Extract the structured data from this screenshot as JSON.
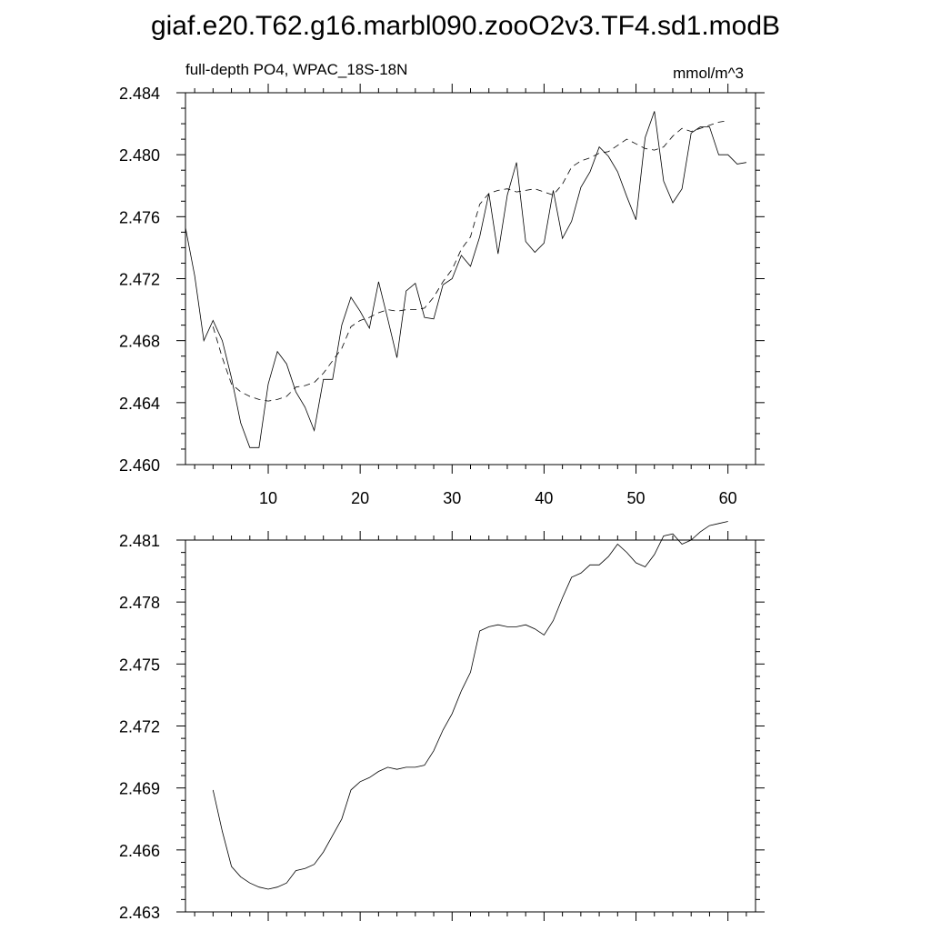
{
  "title": "giaf.e20.T62.g16.marbl090.zooO2v3.TF4.sd1.modB",
  "chart_data": [
    {
      "type": "line",
      "left_label": "full-depth PO4, WPAC_18S-18N",
      "right_label": "mmol/m^3",
      "xlim": [
        1,
        63
      ],
      "ylim": [
        2.46,
        2.484
      ],
      "xticks": [
        10,
        20,
        30,
        40,
        50,
        60
      ],
      "yticks": [
        2.46,
        2.464,
        2.468,
        2.472,
        2.476,
        2.48,
        2.484
      ],
      "ytick_labels": [
        "2.460",
        "2.464",
        "2.468",
        "2.472",
        "2.476",
        "2.480",
        "2.484"
      ],
      "x_minor_step": 2,
      "y_minor_step": 0.001,
      "series": [
        {
          "style": "solid",
          "x": [
            1,
            2,
            3,
            4,
            5,
            6,
            7,
            8,
            9,
            10,
            11,
            12,
            13,
            14,
            15,
            16,
            17,
            18,
            19,
            20,
            21,
            22,
            23,
            24,
            25,
            26,
            27,
            28,
            29,
            30,
            31,
            32,
            33,
            34,
            35,
            36,
            37,
            38,
            39,
            40,
            41,
            42,
            43,
            44,
            45,
            46,
            47,
            48,
            49,
            50,
            51,
            52,
            53,
            54,
            55,
            56,
            57,
            58,
            59,
            60,
            61,
            62
          ],
          "values": [
            2.4753,
            2.4722,
            2.468,
            2.4693,
            2.468,
            2.4656,
            2.4627,
            2.4611,
            2.4611,
            2.4652,
            2.4673,
            2.4665,
            2.4647,
            2.4637,
            2.4622,
            2.4655,
            2.4655,
            2.469,
            2.4708,
            2.4699,
            2.4688,
            2.4718,
            2.4694,
            2.4669,
            2.4712,
            2.4717,
            2.4695,
            2.4694,
            2.4716,
            2.472,
            2.4735,
            2.4728,
            2.4747,
            2.4775,
            2.4736,
            2.4774,
            2.4795,
            2.4744,
            2.4737,
            2.4743,
            2.4777,
            2.4746,
            2.4757,
            2.4779,
            2.4789,
            2.4805,
            2.4799,
            2.4789,
            2.4773,
            2.4758,
            2.4811,
            2.4828,
            2.4783,
            2.4769,
            2.4778,
            2.4814,
            2.4818,
            2.4818,
            2.48,
            2.48,
            2.4794,
            2.4795
          ]
        },
        {
          "style": "dashed",
          "x": [
            4,
            5,
            6,
            7,
            8,
            9,
            10,
            11,
            12,
            13,
            14,
            15,
            16,
            17,
            18,
            19,
            20,
            21,
            22,
            23,
            24,
            25,
            26,
            27,
            28,
            29,
            30,
            31,
            32,
            33,
            34,
            35,
            36,
            37,
            38,
            39,
            40,
            41,
            42,
            43,
            44,
            45,
            46,
            47,
            48,
            49,
            50,
            51,
            52,
            53,
            54,
            55,
            56,
            57,
            58,
            59,
            60
          ],
          "values": [
            2.4689,
            2.4669,
            2.4652,
            2.4647,
            2.4644,
            2.4642,
            2.4641,
            2.4642,
            2.4644,
            2.465,
            2.4651,
            2.4653,
            2.4659,
            2.4667,
            2.4675,
            2.4689,
            2.4693,
            2.4695,
            2.4698,
            2.47,
            2.4699,
            2.47,
            2.47,
            2.4701,
            2.4708,
            2.4718,
            2.4726,
            2.4739,
            2.4747,
            2.4768,
            2.4775,
            2.4777,
            2.4778,
            2.4776,
            2.4777,
            2.4778,
            2.4776,
            2.4774,
            2.4781,
            2.4792,
            2.4796,
            2.4798,
            2.4801,
            2.4802,
            2.4806,
            2.481,
            2.4807,
            2.4804,
            2.4803,
            2.4805,
            2.4812,
            2.4817,
            2.4815,
            2.4817,
            2.4819,
            2.4821,
            2.4822
          ]
        }
      ]
    },
    {
      "type": "line",
      "xlim": [
        1,
        63
      ],
      "ylim": [
        2.463,
        2.481
      ],
      "xticks": [
        10,
        20,
        30,
        40,
        50,
        60
      ],
      "yticks": [
        2.463,
        2.466,
        2.469,
        2.472,
        2.475,
        2.478,
        2.481
      ],
      "ytick_labels": [
        "2.463",
        "2.466",
        "2.469",
        "2.472",
        "2.475",
        "2.478",
        "2.481"
      ],
      "x_minor_step": 2,
      "y_minor_step": 0.0006,
      "series": [
        {
          "style": "solid",
          "x": [
            4,
            5,
            6,
            7,
            8,
            9,
            10,
            11,
            12,
            13,
            14,
            15,
            16,
            17,
            18,
            19,
            20,
            21,
            22,
            23,
            24,
            25,
            26,
            27,
            28,
            29,
            30,
            31,
            32,
            33,
            34,
            35,
            36,
            37,
            38,
            39,
            40,
            41,
            42,
            43,
            44,
            45,
            46,
            47,
            48,
            49,
            50,
            51,
            52,
            53,
            54,
            55,
            56,
            57,
            58,
            59,
            60
          ],
          "values": [
            2.4689,
            2.4669,
            2.4652,
            2.4647,
            2.4644,
            2.4642,
            2.4641,
            2.4642,
            2.4644,
            2.465,
            2.4651,
            2.4653,
            2.4659,
            2.4667,
            2.4675,
            2.4689,
            2.4693,
            2.4695,
            2.4698,
            2.47,
            2.4699,
            2.47,
            2.47,
            2.4701,
            2.4708,
            2.4718,
            2.4726,
            2.4737,
            2.4746,
            2.4766,
            2.4768,
            2.4769,
            2.4768,
            2.4768,
            2.4769,
            2.4767,
            2.4764,
            2.4771,
            2.4782,
            2.4792,
            2.4794,
            2.4798,
            2.4798,
            2.4802,
            2.4808,
            2.4804,
            2.4799,
            2.4797,
            2.4803,
            2.4812,
            2.4813,
            2.4808,
            2.481,
            2.4814,
            2.4817,
            2.4818,
            2.4819
          ]
        }
      ]
    }
  ]
}
